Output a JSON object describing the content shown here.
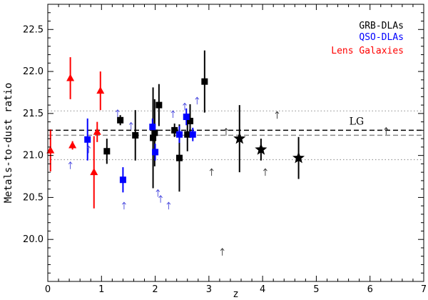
{
  "chart_data": {
    "type": "scatter",
    "xlabel": "z",
    "ylabel": "Metals-to-dust ratio",
    "xlim": [
      0,
      7
    ],
    "ylim": [
      19.5,
      22.8
    ],
    "x_ticks": [
      0,
      1,
      2,
      3,
      4,
      5,
      6,
      7
    ],
    "y_ticks": [
      20.0,
      20.5,
      21.0,
      21.5,
      22.0,
      22.5
    ],
    "legend": {
      "placement": "top-right",
      "entries": [
        {
          "label": "GRB-DLAs",
          "color": "#000000"
        },
        {
          "label": "QSO-DLAs",
          "color": "#0000ff"
        },
        {
          "label": "Lens Galaxies",
          "color": "#ff0000"
        }
      ]
    },
    "annotation": {
      "text": "LG",
      "x": 5.75,
      "y": 21.35
    },
    "reference_lines": [
      {
        "y": 21.3,
        "style": "dashed",
        "color": "#000000"
      },
      {
        "y": 21.24,
        "style": "dashed",
        "color": "#888888"
      },
      {
        "y": 21.53,
        "style": "dotted",
        "color": "#999999"
      },
      {
        "y": 20.95,
        "style": "dotted",
        "color": "#999999"
      }
    ],
    "series": [
      {
        "name": "GRB-DLAs",
        "color": "#000000",
        "marker": "square",
        "points": [
          {
            "x": 1.1,
            "y": 21.05,
            "err": 0.15
          },
          {
            "x": 1.35,
            "y": 21.42,
            "err": 0.06
          },
          {
            "x": 1.63,
            "y": 21.24,
            "err": 0.3
          },
          {
            "x": 1.96,
            "y": 21.21,
            "err": 0.6
          },
          {
            "x": 1.99,
            "y": 21.27,
            "err": 0.4
          },
          {
            "x": 2.07,
            "y": 21.6,
            "err": 0.25
          },
          {
            "x": 2.36,
            "y": 21.3,
            "err": 0.08
          },
          {
            "x": 2.45,
            "y": 20.97,
            "err": 0.4
          },
          {
            "x": 2.6,
            "y": 21.25,
            "err": 0.2
          },
          {
            "x": 2.65,
            "y": 21.41,
            "err": 0.2
          },
          {
            "x": 2.92,
            "y": 21.88,
            "err": 0.37
          }
        ]
      },
      {
        "name": "GRB-DLAs",
        "color": "#000000",
        "marker": "star",
        "points": [
          {
            "x": 3.57,
            "y": 21.2,
            "err": 0.4
          },
          {
            "x": 3.97,
            "y": 21.07,
            "err": 0.13
          },
          {
            "x": 4.67,
            "y": 20.97,
            "err": 0.25
          }
        ]
      },
      {
        "name": "QSO-DLAs",
        "color": "#0000ff",
        "marker": "square",
        "points": [
          {
            "x": 0.74,
            "y": 21.19,
            "err": 0.25
          },
          {
            "x": 1.4,
            "y": 20.71,
            "err": 0.15
          },
          {
            "x": 1.95,
            "y": 21.34,
            "err": 0.1
          },
          {
            "x": 2.0,
            "y": 21.04,
            "err": 0.1
          },
          {
            "x": 2.45,
            "y": 21.25,
            "err": 0.1
          },
          {
            "x": 2.58,
            "y": 21.46,
            "err": 0.1
          },
          {
            "x": 2.7,
            "y": 21.25,
            "err": 0.08
          }
        ]
      },
      {
        "name": "QSO-DLAs limits",
        "color": "#4444dd",
        "marker": "up-arrow",
        "points": [
          {
            "x": 0.42,
            "y": 20.88
          },
          {
            "x": 0.76,
            "y": 21.07
          },
          {
            "x": 1.3,
            "y": 21.5
          },
          {
            "x": 1.42,
            "y": 20.4
          },
          {
            "x": 1.55,
            "y": 21.35
          },
          {
            "x": 2.05,
            "y": 20.55
          },
          {
            "x": 2.1,
            "y": 20.48
          },
          {
            "x": 2.25,
            "y": 20.4
          },
          {
            "x": 2.33,
            "y": 21.49
          },
          {
            "x": 2.78,
            "y": 21.65
          },
          {
            "x": 2.55,
            "y": 21.58
          }
        ]
      },
      {
        "name": "GRB-DLAs limits",
        "color": "#333333",
        "marker": "up-arrow",
        "points": [
          {
            "x": 3.05,
            "y": 20.8
          },
          {
            "x": 3.25,
            "y": 19.85
          },
          {
            "x": 3.32,
            "y": 21.28
          },
          {
            "x": 4.05,
            "y": 20.8
          },
          {
            "x": 4.27,
            "y": 21.48
          },
          {
            "x": 6.3,
            "y": 21.29
          }
        ]
      },
      {
        "name": "Lens Galaxies",
        "color": "#ff0000",
        "marker": "triangle",
        "points": [
          {
            "x": 0.05,
            "y": 21.06,
            "err": 0.25
          },
          {
            "x": 0.42,
            "y": 21.92,
            "err": 0.25
          },
          {
            "x": 0.46,
            "y": 21.12,
            "err": 0.05
          },
          {
            "x": 0.86,
            "y": 20.8,
            "err": 0.43
          },
          {
            "x": 0.92,
            "y": 21.28,
            "err": 0.12
          },
          {
            "x": 0.98,
            "y": 21.77,
            "err": 0.23
          }
        ]
      }
    ]
  }
}
